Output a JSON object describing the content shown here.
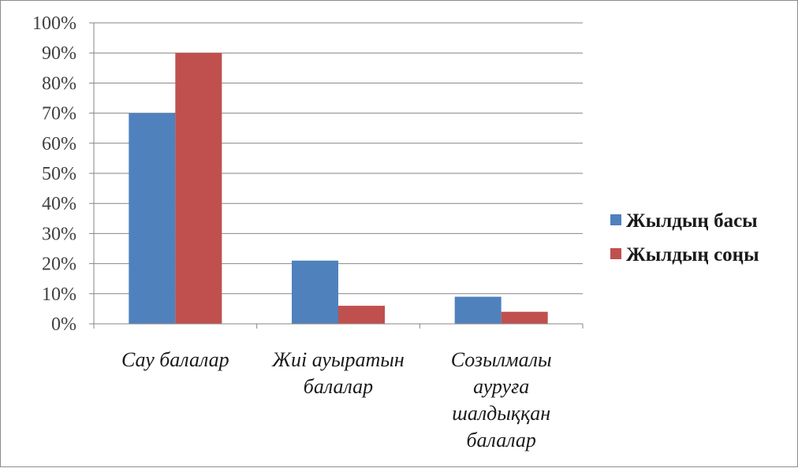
{
  "chart_data": {
    "type": "bar",
    "categories": [
      [
        "Сау балалар"
      ],
      [
        "Жиі ауыратын",
        "балалар"
      ],
      [
        "Созылмалы",
        "ауруға",
        "шалдыққан",
        "балалар"
      ]
    ],
    "series": [
      {
        "name": "Жылдың басы",
        "values": [
          70,
          21,
          9
        ],
        "color": "#4f81bd"
      },
      {
        "name": "Жылдың соңы",
        "values": [
          90,
          6,
          4
        ],
        "color": "#c0504d"
      }
    ],
    "yticks": [
      "0%",
      "10%",
      "20%",
      "30%",
      "40%",
      "50%",
      "60%",
      "70%",
      "80%",
      "90%",
      "100%"
    ],
    "ylim": [
      0,
      100
    ],
    "grid": true,
    "legend": "right",
    "colors": {
      "grid": "#868686",
      "axis": "#868686"
    }
  }
}
